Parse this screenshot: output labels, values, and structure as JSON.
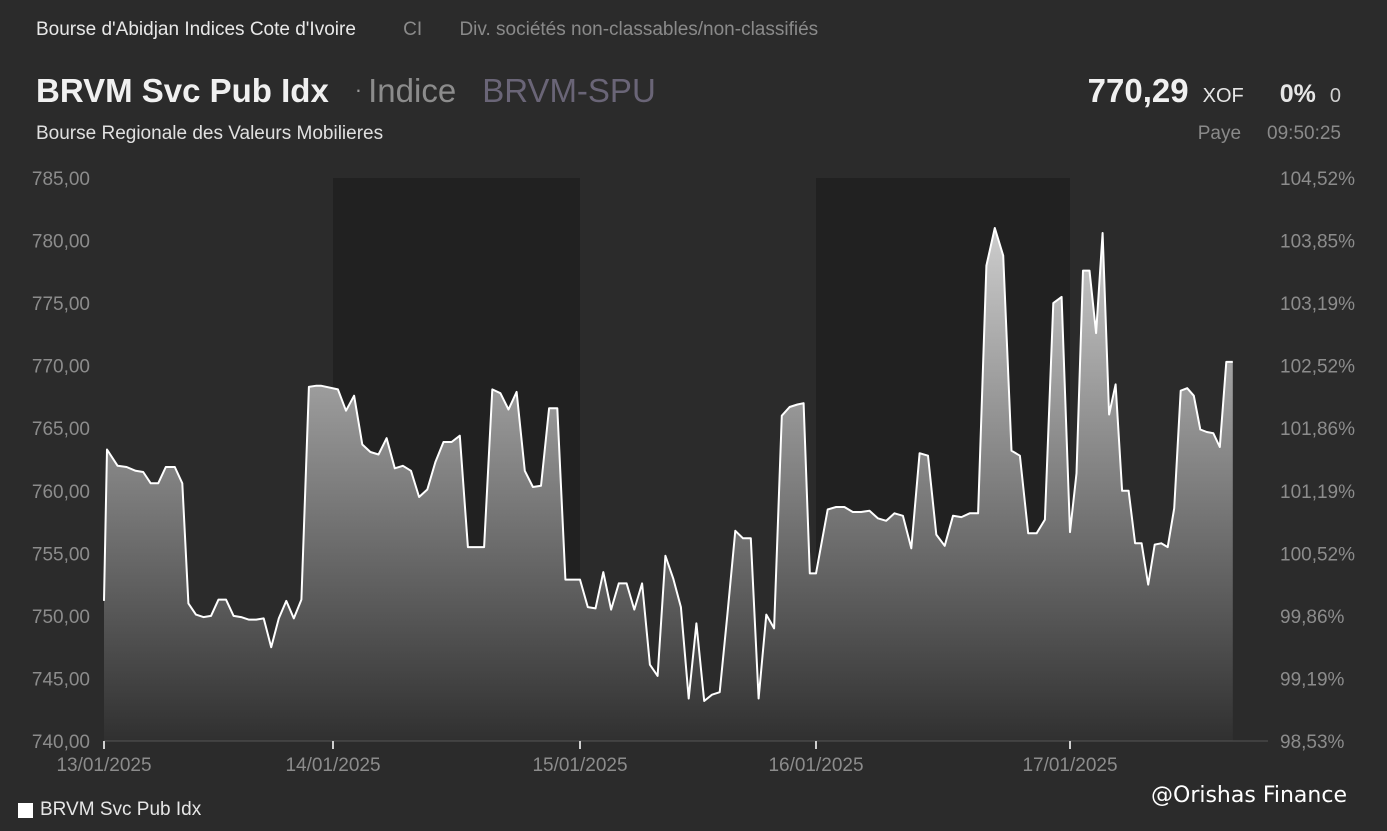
{
  "header": {
    "exchange": "Bourse d'Abidjan Indices Cote d'Ivoire",
    "country": "CI",
    "sector": "Div. sociétés non-classables/non-classifiés",
    "name": "BRVM Svc Pub Idx",
    "separator": "·",
    "type": "Indice",
    "ticker": "BRVM-SPU",
    "market": "Bourse Regionale des Valeurs Mobilieres"
  },
  "quote": {
    "price": "770,29",
    "currency": "XOF",
    "change_pct": "0%",
    "change_abs": "0",
    "status": "Paye",
    "time": "09:50:25"
  },
  "legend": {
    "label": "BRVM Svc Pub Idx"
  },
  "watermark": "@Orishas Finance",
  "colors": {
    "background": "#2b2b2b",
    "shaded_band": "#212121",
    "line": "#ffffff",
    "axis_text": "#8c8c8c"
  },
  "chart_data": {
    "type": "area",
    "grid": false,
    "legend_position": "bottom-left",
    "ylim": [
      740,
      785
    ],
    "y_ticks": [
      "785,00",
      "780,00",
      "775,00",
      "770,00",
      "765,00",
      "760,00",
      "755,00",
      "750,00",
      "745,00",
      "740,00"
    ],
    "y_tick_values": [
      785,
      780,
      775,
      770,
      765,
      760,
      755,
      750,
      745,
      740
    ],
    "y2_ticks": [
      "104,52%",
      "103,85%",
      "103,19%",
      "102,52%",
      "101,86%",
      "101,19%",
      "100,52%",
      "99,86%",
      "99,19%",
      "98,53%"
    ],
    "x_ticks": [
      "13/01/2025",
      "14/01/2025",
      "15/01/2025",
      "16/01/2025",
      "17/01/2025"
    ],
    "shaded_days": [
      "14/01/2025",
      "16/01/2025"
    ],
    "series": [
      {
        "name": "BRVM Svc Pub Idx",
        "points": [
          [
            "13/01/2025 00:00",
            751.2
          ],
          [
            "13/01/2025 00:10",
            763.3
          ],
          [
            "13/01/2025 00:45",
            762.0
          ],
          [
            "13/01/2025 01:15",
            761.9
          ],
          [
            "13/01/2025 01:45",
            761.6
          ],
          [
            "13/01/2025 02:10",
            761.5
          ],
          [
            "13/01/2025 02:35",
            760.6
          ],
          [
            "13/01/2025 03:00",
            760.6
          ],
          [
            "13/01/2025 03:25",
            761.9
          ],
          [
            "13/01/2025 03:55",
            761.9
          ],
          [
            "13/01/2025 04:20",
            760.6
          ],
          [
            "13/01/2025 04:40",
            751.0
          ],
          [
            "13/01/2025 05:05",
            750.1
          ],
          [
            "13/01/2025 05:30",
            749.9
          ],
          [
            "13/01/2025 05:55",
            750.0
          ],
          [
            "13/01/2025 06:20",
            751.3
          ],
          [
            "13/01/2025 06:45",
            751.3
          ],
          [
            "13/01/2025 07:10",
            750.0
          ],
          [
            "13/01/2025 07:35",
            749.9
          ],
          [
            "13/01/2025 08:00",
            749.7
          ],
          [
            "13/01/2025 08:25",
            749.7
          ],
          [
            "13/01/2025 08:50",
            749.8
          ],
          [
            "13/01/2025 09:15",
            747.5
          ],
          [
            "13/01/2025 09:40",
            749.8
          ],
          [
            "13/01/2025 10:05",
            751.2
          ],
          [
            "13/01/2025 10:30",
            749.8
          ],
          [
            "13/01/2025 10:55",
            751.3
          ],
          [
            "13/01/2025 11:20",
            768.3
          ],
          [
            "13/01/2025 11:45",
            768.4
          ],
          [
            "13/01/2025 12:00",
            768.4
          ],
          [
            "14/01/2025 00:15",
            768.1
          ],
          [
            "14/01/2025 00:40",
            766.4
          ],
          [
            "14/01/2025 01:05",
            767.6
          ],
          [
            "14/01/2025 01:30",
            763.7
          ],
          [
            "14/01/2025 01:55",
            763.1
          ],
          [
            "14/01/2025 02:20",
            762.9
          ],
          [
            "14/01/2025 02:45",
            764.2
          ],
          [
            "14/01/2025 03:10",
            761.8
          ],
          [
            "14/01/2025 03:35",
            762.0
          ],
          [
            "14/01/2025 04:00",
            761.6
          ],
          [
            "14/01/2025 04:25",
            759.5
          ],
          [
            "14/01/2025 04:50",
            760.1
          ],
          [
            "14/01/2025 05:15",
            762.3
          ],
          [
            "14/01/2025 05:40",
            763.9
          ],
          [
            "14/01/2025 06:05",
            763.9
          ],
          [
            "14/01/2025 06:30",
            764.4
          ],
          [
            "14/01/2025 06:55",
            755.5
          ],
          [
            "14/01/2025 07:20",
            755.5
          ],
          [
            "14/01/2025 07:45",
            755.5
          ],
          [
            "14/01/2025 08:10",
            768.1
          ],
          [
            "14/01/2025 08:35",
            767.8
          ],
          [
            "14/01/2025 09:00",
            766.5
          ],
          [
            "14/01/2025 09:25",
            767.9
          ],
          [
            "14/01/2025 09:50",
            761.6
          ],
          [
            "14/01/2025 10:15",
            760.3
          ],
          [
            "14/01/2025 10:40",
            760.4
          ],
          [
            "14/01/2025 11:05",
            766.6
          ],
          [
            "14/01/2025 11:30",
            766.6
          ],
          [
            "14/01/2025 11:55",
            752.9
          ],
          [
            "15/01/2025 00:00",
            752.9
          ],
          [
            "15/01/2025 00:25",
            750.7
          ],
          [
            "15/01/2025 00:50",
            750.6
          ],
          [
            "15/01/2025 01:15",
            753.5
          ],
          [
            "15/01/2025 01:40",
            750.5
          ],
          [
            "15/01/2025 02:05",
            752.6
          ],
          [
            "15/01/2025 02:30",
            752.6
          ],
          [
            "15/01/2025 02:55",
            750.5
          ],
          [
            "15/01/2025 03:20",
            752.6
          ],
          [
            "15/01/2025 03:45",
            746.1
          ],
          [
            "15/01/2025 04:10",
            745.2
          ],
          [
            "15/01/2025 04:35",
            754.8
          ],
          [
            "15/01/2025 05:00",
            753.0
          ],
          [
            "15/01/2025 05:25",
            750.7
          ],
          [
            "15/01/2025 05:50",
            743.4
          ],
          [
            "15/01/2025 06:15",
            749.4
          ],
          [
            "15/01/2025 06:40",
            743.2
          ],
          [
            "15/01/2025 07:05",
            743.7
          ],
          [
            "15/01/2025 07:30",
            743.9
          ],
          [
            "15/01/2025 07:55",
            750.2
          ],
          [
            "15/01/2025 08:20",
            756.8
          ],
          [
            "15/01/2025 08:45",
            756.2
          ],
          [
            "15/01/2025 09:10",
            756.2
          ],
          [
            "15/01/2025 09:35",
            743.4
          ],
          [
            "15/01/2025 10:00",
            750.1
          ],
          [
            "15/01/2025 10:25",
            749.0
          ],
          [
            "15/01/2025 10:50",
            766.0
          ],
          [
            "15/01/2025 11:15",
            766.7
          ],
          [
            "15/01/2025 11:40",
            766.9
          ],
          [
            "15/01/2025 12:00",
            767.0
          ],
          [
            "15/01/2025 12:20",
            753.4
          ],
          [
            "16/01/2025 00:00",
            753.4
          ],
          [
            "16/01/2025 00:35",
            758.5
          ],
          [
            "16/01/2025 01:00",
            758.7
          ],
          [
            "16/01/2025 01:25",
            758.7
          ],
          [
            "16/01/2025 01:50",
            758.3
          ],
          [
            "16/01/2025 02:15",
            758.3
          ],
          [
            "16/01/2025 02:40",
            758.4
          ],
          [
            "16/01/2025 03:05",
            757.8
          ],
          [
            "16/01/2025 03:30",
            757.6
          ],
          [
            "16/01/2025 03:55",
            758.2
          ],
          [
            "16/01/2025 04:20",
            758.0
          ],
          [
            "16/01/2025 04:45",
            755.4
          ],
          [
            "16/01/2025 05:10",
            763.0
          ],
          [
            "16/01/2025 05:35",
            762.8
          ],
          [
            "16/01/2025 06:00",
            756.5
          ],
          [
            "16/01/2025 06:25",
            755.6
          ],
          [
            "16/01/2025 06:50",
            758.0
          ],
          [
            "16/01/2025 07:15",
            757.9
          ],
          [
            "16/01/2025 07:40",
            758.2
          ],
          [
            "16/01/2025 08:05",
            758.2
          ],
          [
            "16/01/2025 08:30",
            778.0
          ],
          [
            "16/01/2025 08:55",
            781.0
          ],
          [
            "16/01/2025 09:20",
            778.8
          ],
          [
            "16/01/2025 09:45",
            763.2
          ],
          [
            "16/01/2025 10:10",
            762.8
          ],
          [
            "16/01/2025 10:35",
            756.6
          ],
          [
            "16/01/2025 11:00",
            756.6
          ],
          [
            "16/01/2025 11:25",
            757.7
          ],
          [
            "16/01/2025 11:50",
            775.0
          ],
          [
            "16/01/2025 12:15",
            775.5
          ],
          [
            "16/01/2025 12:40",
            756.7
          ],
          [
            "17/01/2025 00:00",
            756.7
          ],
          [
            "17/01/2025 00:25",
            761.4
          ],
          [
            "17/01/2025 00:50",
            777.6
          ],
          [
            "17/01/2025 01:15",
            777.6
          ],
          [
            "17/01/2025 01:40",
            772.6
          ],
          [
            "17/01/2025 02:05",
            780.6
          ],
          [
            "17/01/2025 02:30",
            766.1
          ],
          [
            "17/01/2025 02:55",
            768.5
          ],
          [
            "17/01/2025 03:20",
            760.0
          ],
          [
            "17/01/2025 03:45",
            760.0
          ],
          [
            "17/01/2025 04:10",
            755.8
          ],
          [
            "17/01/2025 04:35",
            755.8
          ],
          [
            "17/01/2025 05:00",
            752.5
          ],
          [
            "17/01/2025 05:25",
            755.7
          ],
          [
            "17/01/2025 05:50",
            755.8
          ],
          [
            "17/01/2025 06:15",
            755.5
          ],
          [
            "17/01/2025 06:40",
            758.6
          ],
          [
            "17/01/2025 07:05",
            768.0
          ],
          [
            "17/01/2025 07:30",
            768.2
          ],
          [
            "17/01/2025 07:55",
            767.6
          ],
          [
            "17/01/2025 08:20",
            764.9
          ],
          [
            "17/01/2025 08:45",
            764.7
          ],
          [
            "17/01/2025 09:10",
            764.6
          ],
          [
            "17/01/2025 09:35",
            763.5
          ],
          [
            "17/01/2025 10:00",
            770.3
          ],
          [
            "17/01/2025 10:25",
            770.3
          ]
        ]
      }
    ]
  }
}
